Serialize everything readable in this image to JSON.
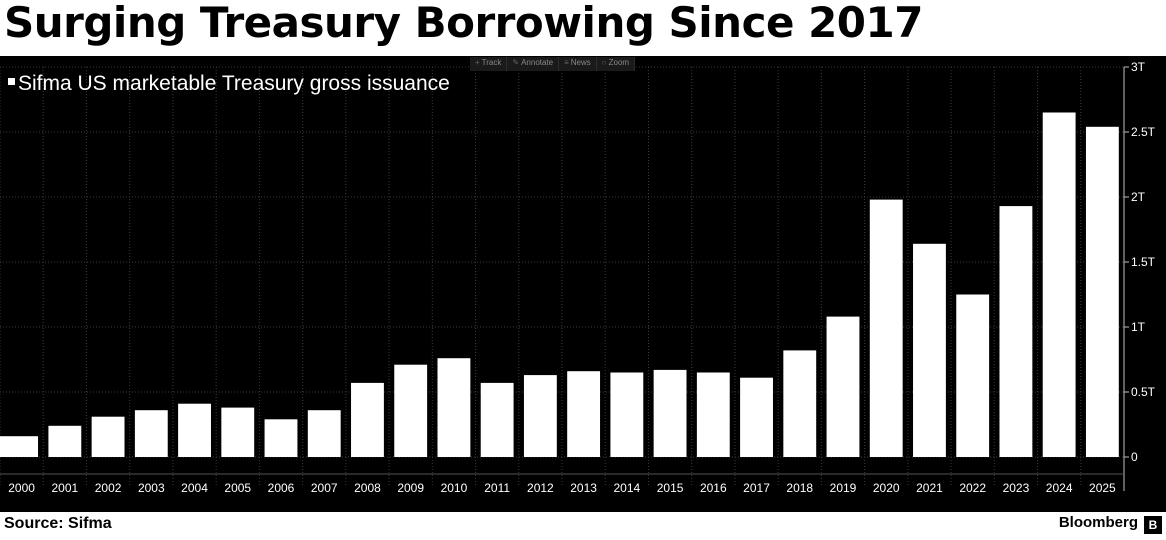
{
  "header": {
    "title": "Surging Treasury Borrowing Since 2017"
  },
  "toolbar": {
    "items": [
      {
        "label": "Track",
        "icon": "crosshair-icon"
      },
      {
        "label": "Annotate",
        "icon": "pencil-icon"
      },
      {
        "label": "News",
        "icon": "news-icon"
      },
      {
        "label": "Zoom",
        "icon": "magnifier-icon"
      }
    ]
  },
  "legend": {
    "label": "Sifma US marketable Treasury gross issuance"
  },
  "footer": {
    "source": "Source: Sifma",
    "brand": "Bloomberg"
  },
  "colors": {
    "background": "#000000",
    "bar": "#ffffff",
    "grid": "#3a3a3a",
    "text": "#ffffff"
  },
  "chart_data": {
    "type": "bar",
    "title": "Surging Treasury Borrowing Since 2017",
    "xlabel": "",
    "ylabel": "",
    "ylim": [
      0,
      3
    ],
    "yticks": [
      0,
      0.5,
      1,
      1.5,
      2,
      2.5,
      3
    ],
    "ytick_labels": [
      "0",
      "0.5T",
      "1T",
      "1.5T",
      "2T",
      "2.5T",
      "3T"
    ],
    "y_axis_side": "right",
    "grid": true,
    "legend_position": "top-left",
    "categories": [
      "2000",
      "2001",
      "2002",
      "2003",
      "2004",
      "2005",
      "2006",
      "2007",
      "2008",
      "2009",
      "2010",
      "2011",
      "2012",
      "2013",
      "2014",
      "2015",
      "2016",
      "2017",
      "2018",
      "2019",
      "2020",
      "2021",
      "2022",
      "2023",
      "2024",
      "2025"
    ],
    "series": [
      {
        "name": "Sifma US marketable Treasury gross issuance",
        "values": [
          0.16,
          0.24,
          0.31,
          0.36,
          0.41,
          0.38,
          0.29,
          0.36,
          0.57,
          0.71,
          0.76,
          0.57,
          0.63,
          0.66,
          0.65,
          0.67,
          0.65,
          0.61,
          0.82,
          1.08,
          1.98,
          1.64,
          1.25,
          1.93,
          2.65,
          2.54
        ]
      }
    ]
  }
}
